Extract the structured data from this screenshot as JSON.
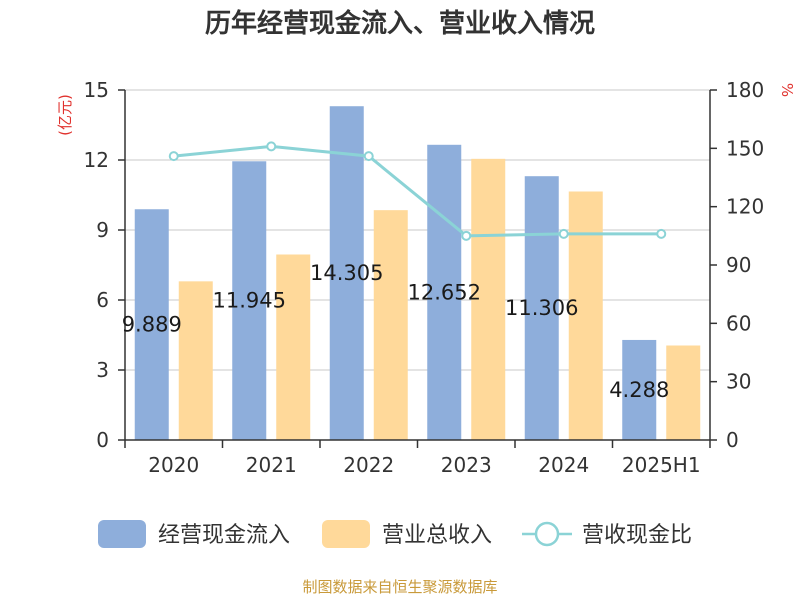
{
  "chart_data": {
    "type": "bar",
    "title": "历年经营现金流入、营业收入情况",
    "categories": [
      "2020",
      "2021",
      "2022",
      "2023",
      "2024",
      "2025H1"
    ],
    "y_left": {
      "unit": "(亿元)",
      "min": 0,
      "max": 15,
      "ticks": [
        0,
        3,
        6,
        9,
        12,
        15
      ]
    },
    "y_right": {
      "unit": "%",
      "min": 0,
      "max": 180,
      "ticks": [
        0,
        30,
        60,
        90,
        120,
        150,
        180
      ]
    },
    "grid": true,
    "legend_position": "bottom",
    "series": [
      {
        "name": "经营现金流入",
        "type": "bar",
        "axis": "left",
        "color": "#8eaedb",
        "values": [
          9.889,
          11.945,
          14.305,
          12.652,
          11.306,
          4.288
        ],
        "labels": [
          "9.889",
          "11.945",
          "14.305",
          "12.652",
          "11.306",
          "4.288"
        ]
      },
      {
        "name": "营业总收入",
        "type": "bar",
        "axis": "left",
        "color": "#ffd99a",
        "values": [
          6.8,
          7.95,
          9.85,
          12.05,
          10.65,
          4.05
        ]
      },
      {
        "name": "营收现金比",
        "type": "line",
        "axis": "right",
        "color": "#8bd3d6",
        "values": [
          146,
          151,
          146,
          105,
          106,
          106
        ]
      }
    ]
  },
  "source_text": "制图数据来自恒生聚源数据库"
}
